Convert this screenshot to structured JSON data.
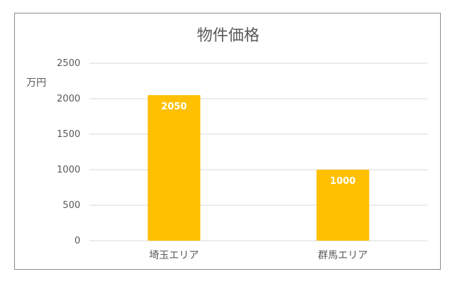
{
  "chart_data": {
    "type": "bar",
    "title": "物件価格",
    "ylabel": "万円",
    "categories": [
      "埼玉エリア",
      "群馬エリア"
    ],
    "values": [
      2050,
      1000
    ],
    "data_labels": [
      "2050",
      "1000"
    ],
    "ylim": [
      0,
      2500
    ],
    "yticks": [
      "0",
      "500",
      "1000",
      "1500",
      "2000",
      "2500"
    ],
    "grid": true,
    "legend": "none",
    "bar_color": "#FFC000"
  }
}
